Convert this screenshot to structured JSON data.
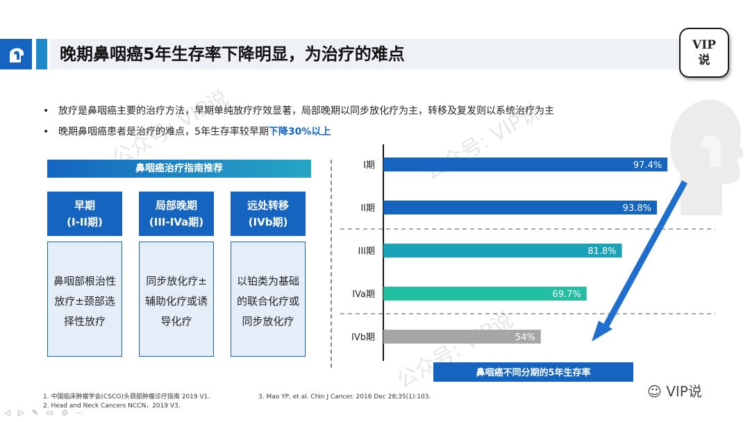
{
  "header": {
    "title": "晚期鼻咽癌5年生存率下降明显，为治疗的难点",
    "badge_line1": "VIP",
    "badge_line2": "说"
  },
  "bullets": {
    "item1": "放疗是鼻咽癌主要的治疗方法，早期单纯放疗疗效显著，局部晚期以同步放化疗为主，转移及复发则以系统治疗为主",
    "item2_prefix": "晚期鼻咽癌患者是治疗的难点，5年生存率较早期",
    "item2_highlight": "下降30%以上"
  },
  "guideline": {
    "title": "鼻咽癌治疗指南推荐",
    "columns": [
      {
        "name": "早期",
        "stage": "(I-II期)",
        "lines": [
          "鼻咽部根治性",
          "放疗±颈部选",
          "择性放疗"
        ]
      },
      {
        "name": "局部晚期",
        "stage": "(III-IVa期)",
        "lines": [
          "同步放化疗±",
          "辅助化疗或诱",
          "导化疗"
        ]
      },
      {
        "name": "远处转移",
        "stage": "(IVb期)",
        "lines": [
          "以铂类为基础",
          "的联合化疗或",
          "同步放化疗"
        ]
      }
    ]
  },
  "chart_data": {
    "type": "bar",
    "orientation": "horizontal",
    "title": "鼻咽癌不同分期的5年生存率",
    "categories": [
      "I期",
      "II期",
      "III期",
      "IVa期",
      "IVb期"
    ],
    "values": [
      97.4,
      93.8,
      81.8,
      69.7,
      54
    ],
    "value_labels": [
      "97.4%",
      "93.8%",
      "81.8%",
      "69.7%",
      "54%"
    ],
    "colors": [
      "#1565c0",
      "#1565c0",
      "#1aa3b8",
      "#22bfa3",
      "#a6a6a6"
    ],
    "xlim": [
      0,
      100
    ]
  },
  "references": {
    "ref1": "1. 中国临床肿瘤学会(CSCO)头颈部肿瘤诊疗指南 2019 V1.",
    "ref2": "2. Head and Neck Cancers NCCN，2019 V3.",
    "ref3": "3.  Mao YP, et al. Chin J Cancer. 2016 Dec 28;35(1):103."
  },
  "footer": {
    "wechat_label": "VIP说"
  },
  "watermark": {
    "text": "公众号: VIP说"
  }
}
